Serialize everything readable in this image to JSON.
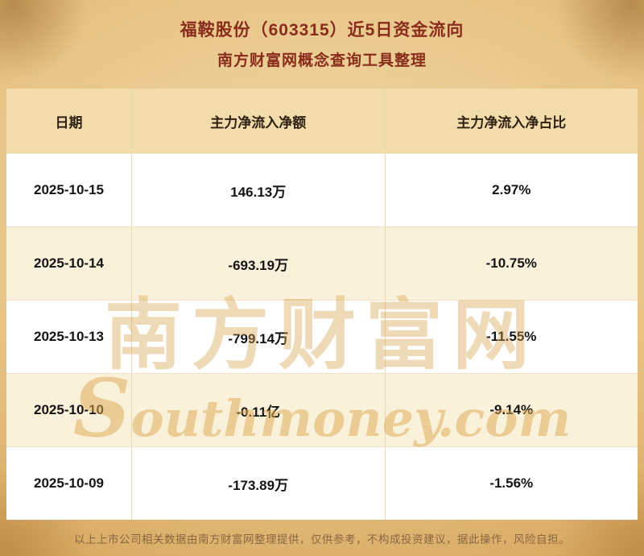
{
  "title": {
    "line1": "福鞍股份（603315）近5日资金流向",
    "line2": "南方财富网概念查询工具整理"
  },
  "chart_data": {
    "type": "table",
    "title": "福鞍股份（603315）近5日资金流向",
    "subtitle": "南方财富网概念查询工具整理",
    "columns": [
      "日期",
      "主力净流入净额",
      "主力净流入净占比"
    ],
    "rows": [
      [
        "2025-10-15",
        "146.13万",
        "2.97%"
      ],
      [
        "2025-10-14",
        "-693.19万",
        "-10.75%"
      ],
      [
        "2025-10-13",
        "-799.14万",
        "-11.55%"
      ],
      [
        "2025-10-10",
        "-0.11亿",
        "-9.14%"
      ],
      [
        "2025-10-09",
        "-173.89万",
        "-1.56%"
      ]
    ]
  },
  "watermark": {
    "cn": "南方财富网",
    "en": "Southmoney.com"
  },
  "footer": "以上上市公司相关数据由南方财富网整理提供，仅供参考，不构成投资建议，据此操作，风险自担。",
  "colors": {
    "title_text": "#8a2c1c",
    "header_bg": "#f3dcab",
    "row_alt_bg": "#faf1da",
    "row_bg": "#ffffff",
    "background_gold": "#e7c385",
    "footer_text": "#8a6743",
    "watermark_gold": "#d8a24a"
  }
}
